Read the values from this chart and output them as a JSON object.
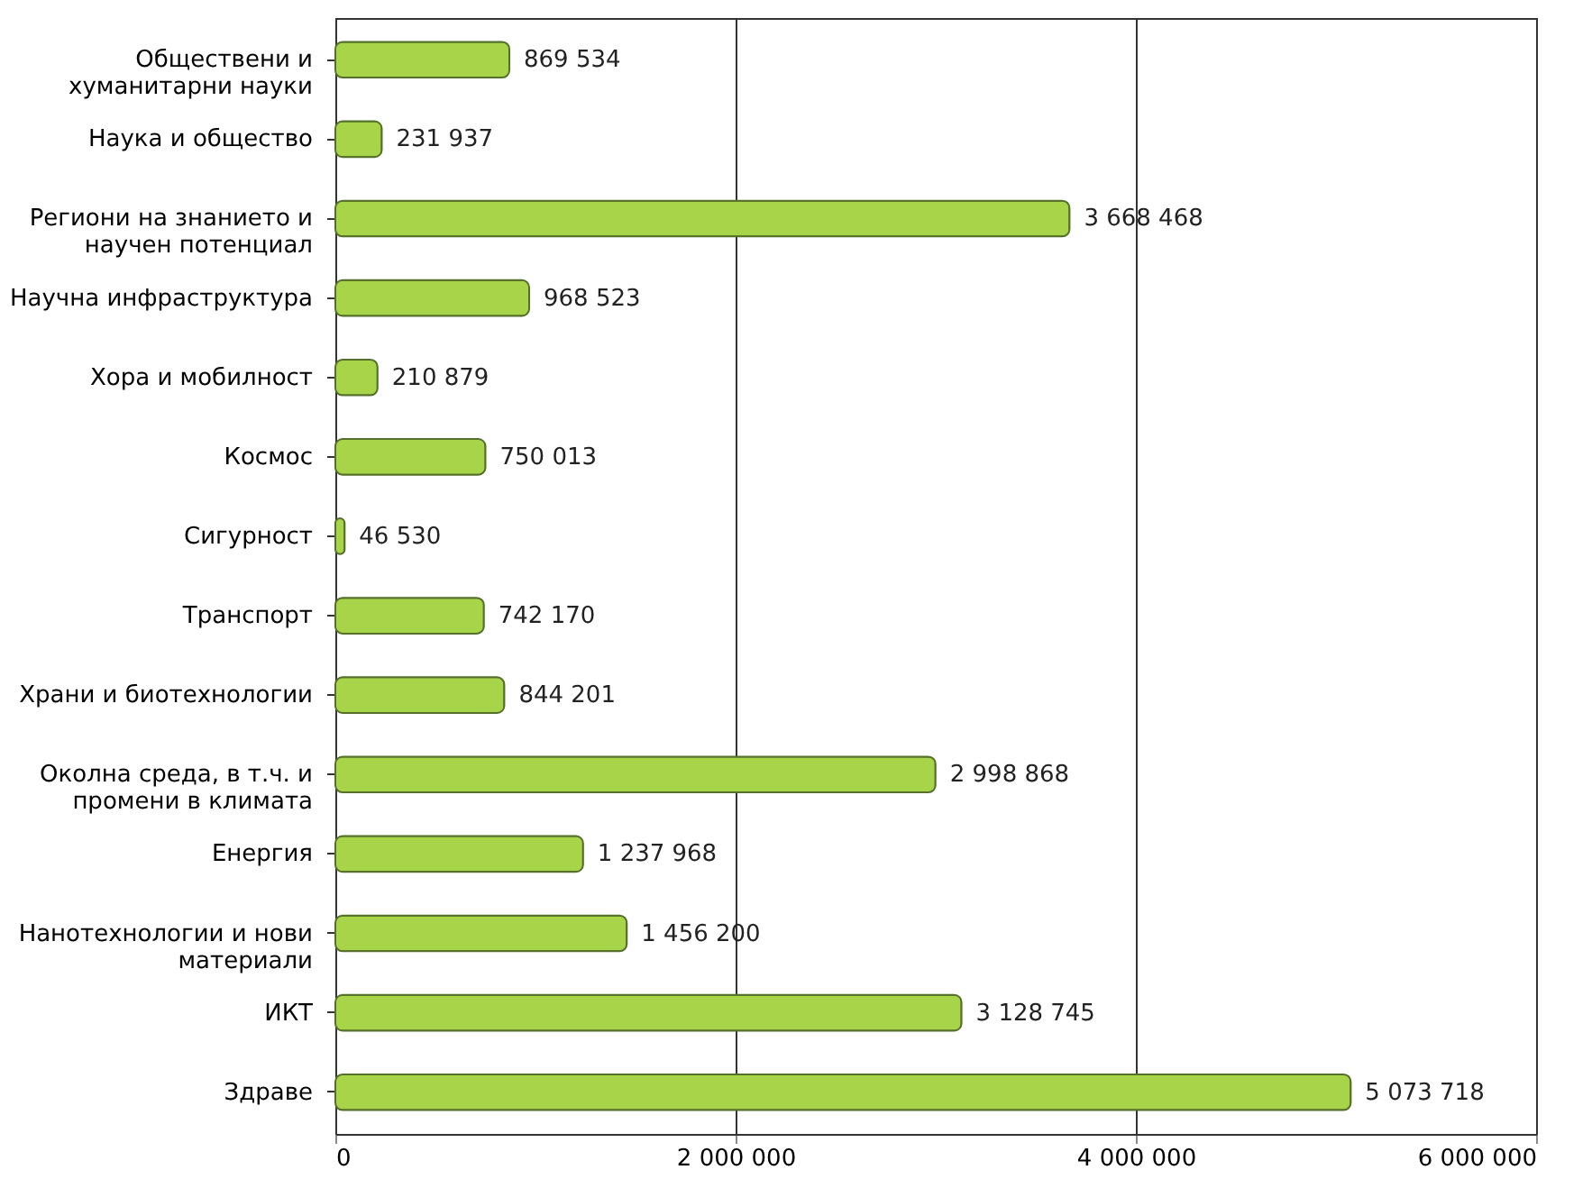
{
  "chart_data": {
    "type": "bar",
    "orientation": "horizontal",
    "categories": [
      "Обществени и\nхуманитарни науки",
      "Наука и общество",
      "Региони на знанието и\nнаучен потенциал",
      "Научна инфраструктура",
      "Хора и мобилност",
      "Космос",
      "Сигурност",
      "Транспорт",
      "Храни и биотехнологии",
      "Околна среда, в т.ч. и\nпромени в климата",
      "Енергия",
      "Нанотехнологии и нови\nматериали",
      "ИКТ",
      "Здраве"
    ],
    "values": [
      869534,
      231937,
      3668468,
      968523,
      210879,
      750013,
      46530,
      742170,
      844201,
      2998868,
      1237968,
      1456200,
      3128745,
      5073718
    ],
    "value_labels": [
      "869 534",
      "231 937",
      "3 668 468",
      "968 523",
      "210 879",
      "750 013",
      "46 530",
      "742 170",
      "844 201",
      "2 998 868",
      "1 237 968",
      "1 456 200",
      "3 128 745",
      "5 073 718"
    ],
    "color": "#a8d44a",
    "xlim": [
      0,
      6000000
    ],
    "xticks": [
      0,
      {
        "value": 2000000,
        "label": "2 000 000"
      },
      {
        "value": 4000000,
        "label": "4 000 000"
      },
      {
        "value": 6000000,
        "label": "6 000 000"
      }
    ],
    "grid": "x"
  }
}
